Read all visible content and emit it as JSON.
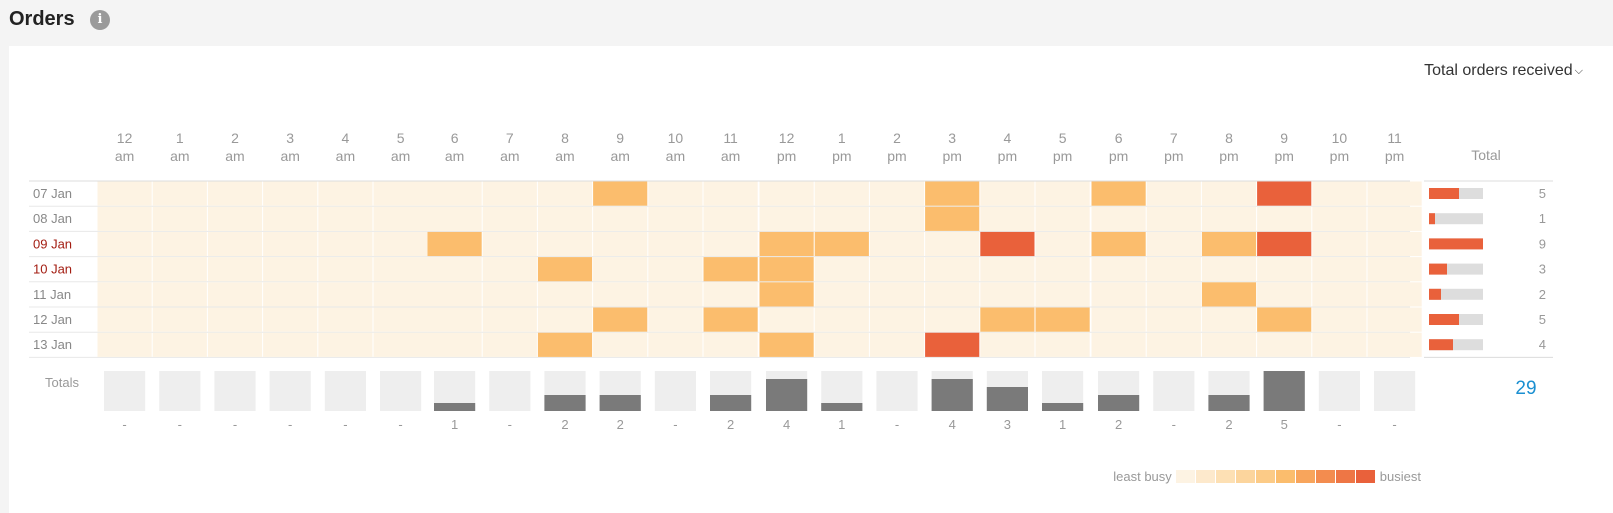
{
  "header": {
    "title": "Orders",
    "info_icon": "info-icon"
  },
  "controls": {
    "metric_label": "Total orders received",
    "metric_icon": "chevron-down-icon"
  },
  "hours": [
    [
      "12",
      "am"
    ],
    [
      "1",
      "am"
    ],
    [
      "2",
      "am"
    ],
    [
      "3",
      "am"
    ],
    [
      "4",
      "am"
    ],
    [
      "5",
      "am"
    ],
    [
      "6",
      "am"
    ],
    [
      "7",
      "am"
    ],
    [
      "8",
      "am"
    ],
    [
      "9",
      "am"
    ],
    [
      "10",
      "am"
    ],
    [
      "11",
      "am"
    ],
    [
      "12",
      "pm"
    ],
    [
      "1",
      "pm"
    ],
    [
      "2",
      "pm"
    ],
    [
      "3",
      "pm"
    ],
    [
      "4",
      "pm"
    ],
    [
      "5",
      "pm"
    ],
    [
      "6",
      "pm"
    ],
    [
      "7",
      "pm"
    ],
    [
      "8",
      "pm"
    ],
    [
      "9",
      "pm"
    ],
    [
      "10",
      "pm"
    ],
    [
      "11",
      "pm"
    ]
  ],
  "total_header": "Total",
  "days": [
    {
      "label": "07 Jan",
      "highlight": false,
      "total": 5,
      "cells": {
        "9": 1,
        "15": 1,
        "18": 1,
        "21": 2
      }
    },
    {
      "label": "08 Jan",
      "highlight": false,
      "total": 1,
      "cells": {
        "15": 1
      }
    },
    {
      "label": "09 Jan",
      "highlight": true,
      "total": 9,
      "cells": {
        "6": 1,
        "12": 1,
        "13": 1,
        "16": 2,
        "18": 1,
        "20": 1,
        "21": 2
      }
    },
    {
      "label": "10 Jan",
      "highlight": true,
      "total": 3,
      "cells": {
        "8": 1,
        "11": 1,
        "12": 1
      }
    },
    {
      "label": "11 Jan",
      "highlight": false,
      "total": 2,
      "cells": {
        "12": 1,
        "20": 1
      }
    },
    {
      "label": "12 Jan",
      "highlight": false,
      "total": 5,
      "cells": {
        "9": 1,
        "11": 1,
        "16": 1,
        "17": 1,
        "21": 1
      }
    },
    {
      "label": "13 Jan",
      "highlight": false,
      "total": 4,
      "cells": {
        "8": 1,
        "12": 1,
        "15": 2
      }
    }
  ],
  "max_day_total": 9,
  "totals_label": "Totals",
  "hour_totals": [
    "-",
    "-",
    "-",
    "-",
    "-",
    "-",
    "1",
    "-",
    "2",
    "2",
    "-",
    "2",
    "4",
    "1",
    "-",
    "4",
    "3",
    "1",
    "2",
    "-",
    "2",
    "5",
    "-",
    "-"
  ],
  "max_hour_total": 5,
  "grand_total": "29",
  "legend": {
    "least": "least busy",
    "most": "busiest",
    "steps": [
      "#fdf3e3",
      "#fde9cc",
      "#fde0b4",
      "#fcd59d",
      "#fccb87",
      "#fbbd6d",
      "#f8a55c",
      "#f38c4f",
      "#ee7645",
      "#e9613b"
    ]
  },
  "colors": {
    "empty": "#fdf3e3",
    "level1": "#fbbd6d",
    "level2": "#e9613b",
    "day_normal": "#888888",
    "day_highlight": "#a31d12",
    "bar_track": "#dddddd",
    "bar_fill": "#e9613b",
    "hour_track": "#eeeeee",
    "hour_fill": "#7a7a7a",
    "grand_total": "#1a8fd1",
    "label": "#999999"
  }
}
